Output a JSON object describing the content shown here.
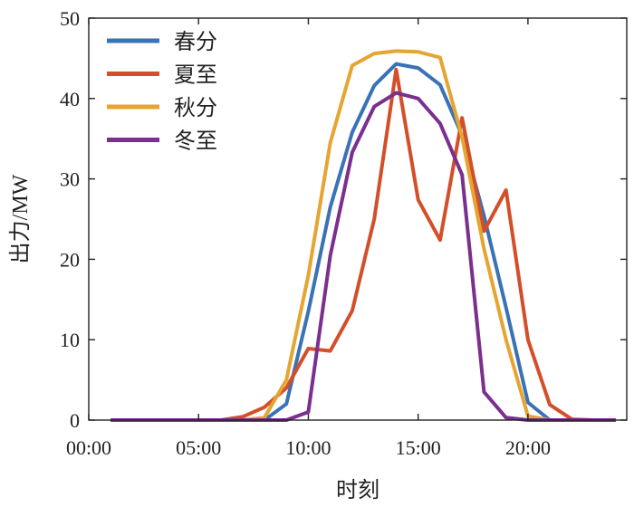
{
  "chart_data": {
    "type": "line",
    "title": "",
    "xlabel": "时刻",
    "ylabel": "出力/MW",
    "xlim": [
      0,
      24.5
    ],
    "ylim": [
      0,
      50
    ],
    "x_ticks": [
      0,
      5,
      10,
      15,
      20
    ],
    "x_tick_labels": [
      "00:00",
      "05:00",
      "10:00",
      "15:00",
      "20:00"
    ],
    "y_ticks": [
      0,
      10,
      20,
      30,
      40,
      50
    ],
    "y_tick_labels": [
      "0",
      "10",
      "20",
      "30",
      "40",
      "50"
    ],
    "grid": false,
    "legend_position": "top-left",
    "x": [
      1,
      2,
      3,
      4,
      5,
      6,
      7,
      8,
      9,
      10,
      11,
      12,
      13,
      14,
      15,
      16,
      17,
      18,
      19,
      20,
      21,
      22,
      23,
      24
    ],
    "series": [
      {
        "name": "春分",
        "color": "#3a72b6",
        "values": [
          0,
          0,
          0,
          0,
          0,
          0,
          0,
          0,
          2.0,
          13.5,
          26.5,
          35.8,
          41.6,
          44.3,
          43.8,
          41.7,
          35.4,
          25.4,
          14.0,
          2.2,
          0,
          0,
          0,
          0
        ]
      },
      {
        "name": "夏至",
        "color": "#d34f2a",
        "values": [
          0,
          0,
          0,
          0,
          0,
          0,
          0.4,
          1.6,
          4.0,
          8.9,
          8.6,
          13.6,
          25.0,
          43.6,
          27.4,
          22.4,
          37.6,
          23.5,
          28.6,
          10.0,
          1.9,
          0.1,
          0,
          0
        ]
      },
      {
        "name": "秋分",
        "color": "#e6a532",
        "values": [
          0,
          0,
          0,
          0,
          0,
          0,
          0,
          0.3,
          5.0,
          18.0,
          34.5,
          44.1,
          45.6,
          45.9,
          45.8,
          45.1,
          35.2,
          21.3,
          10.0,
          0.5,
          0,
          0,
          0,
          0
        ]
      },
      {
        "name": "冬至",
        "color": "#7b2f8e",
        "values": [
          0,
          0,
          0,
          0,
          0,
          0,
          0,
          0,
          0,
          1.0,
          20.5,
          33.3,
          39.0,
          40.7,
          40.0,
          36.9,
          30.5,
          3.5,
          0.3,
          0,
          0,
          0,
          0,
          0
        ]
      }
    ]
  }
}
